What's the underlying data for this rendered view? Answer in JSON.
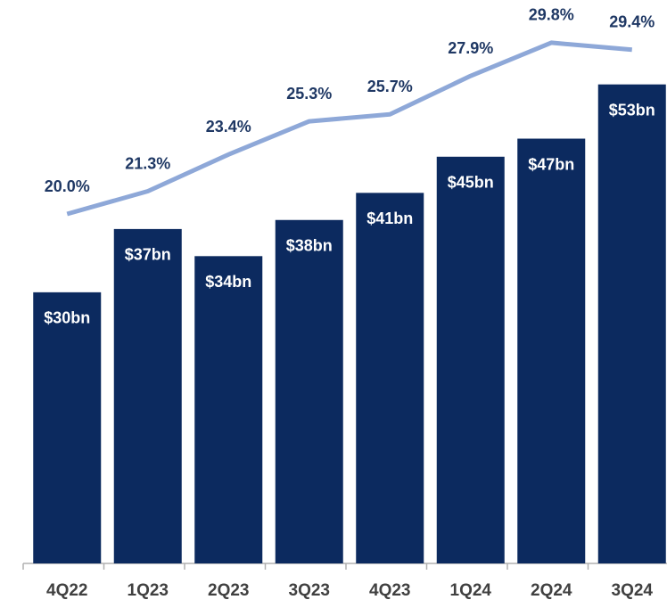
{
  "chart_data": {
    "type": "bar",
    "categories": [
      "4Q22",
      "1Q23",
      "2Q23",
      "3Q23",
      "4Q23",
      "1Q24",
      "2Q24",
      "3Q24"
    ],
    "ylim": [
      0,
      58
    ],
    "y2lim": [
      0,
      30
    ],
    "series": [
      {
        "name": null,
        "type": "bar",
        "color": "#0c2a5f",
        "values": [
          30,
          37,
          34,
          38,
          41,
          45,
          47,
          53
        ],
        "value_labels": [
          "$30bn",
          "$37bn",
          "$34bn",
          "$38bn",
          "$41bn",
          "$45bn",
          "$47bn",
          "$53bn"
        ]
      },
      {
        "name": null,
        "type": "line",
        "axis": "y2",
        "color": "#8ea8d8",
        "values": [
          20.0,
          21.3,
          23.4,
          25.3,
          25.7,
          27.9,
          29.8,
          29.4
        ],
        "value_labels": [
          "20.0%",
          "21.3%",
          "23.4%",
          "25.3%",
          "25.7%",
          "27.9%",
          "29.8%",
          "29.4%"
        ]
      }
    ]
  }
}
